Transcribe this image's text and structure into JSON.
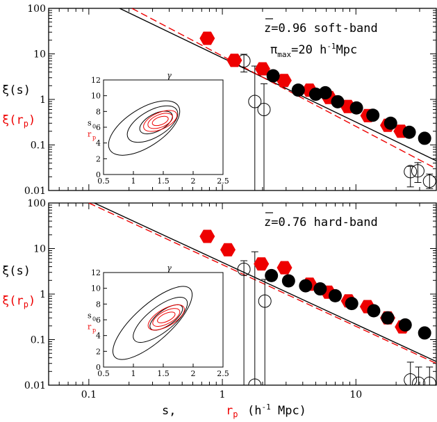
{
  "colors": {
    "red": "#ee0000",
    "black": "#000000"
  },
  "labels": {
    "y_black": "ξ(s)",
    "y_red": "ξ(r",
    "y_red_sub": "p",
    "y_red_close": ")",
    "x_prefix": "s,",
    "x_r": "r",
    "x_r_sub": "p",
    "x_units": "(h",
    "x_units_sup": "-1",
    "x_units_close": " Mpc)",
    "inset_top": "γ",
    "inset_s": "s",
    "inset_s_sub": "0",
    "inset_r": "r",
    "inset_r_sub": "p"
  },
  "chart_data": [
    {
      "type": "scatter",
      "panel": "top",
      "annotation_line1": "z=0.96 soft-band",
      "annotation_line2_a": "π",
      "annotation_line2_sub": "max",
      "annotation_line2_b": "=20 h",
      "annotation_line2_sup": "-1",
      "annotation_line2_c": "Mpc",
      "xlim": [
        0.05,
        40
      ],
      "ylim": [
        0.01,
        100
      ],
      "xscale": "log",
      "yscale": "log",
      "x_ticks": [
        {
          "v": 0.1,
          "l": "0.1"
        },
        {
          "v": 1,
          "l": "1"
        },
        {
          "v": 10,
          "l": "10"
        }
      ],
      "y_ticks": [
        {
          "v": 0.01,
          "l": "0.01"
        },
        {
          "v": 0.1,
          "l": "0.1"
        },
        {
          "v": 1,
          "l": "1"
        },
        {
          "v": 10,
          "l": "10"
        },
        {
          "v": 100,
          "l": "100"
        }
      ],
      "fit_black": [
        [
          0.17,
          100
        ],
        [
          40,
          0.045
        ]
      ],
      "fit_red": [
        [
          0.21,
          100
        ],
        [
          40,
          0.03
        ]
      ],
      "series": [
        {
          "marker": "red-hexagon",
          "points": [
            [
              0.77,
              22
            ],
            [
              1.23,
              7.2
            ],
            [
              2.0,
              4.7
            ],
            [
              2.9,
              2.6
            ],
            [
              4.5,
              1.6
            ],
            [
              6.3,
              1.1
            ],
            [
              8.7,
              0.7
            ],
            [
              12.3,
              0.44
            ],
            [
              17.3,
              0.27
            ],
            [
              21.8,
              0.2
            ]
          ]
        },
        {
          "marker": "black-filled-circle",
          "points": [
            [
              2.4,
              3.3
            ],
            [
              3.7,
              1.6
            ],
            [
              5.0,
              1.3
            ],
            [
              5.9,
              1.4
            ],
            [
              7.3,
              0.89
            ],
            [
              10.1,
              0.65
            ],
            [
              13.4,
              0.45
            ],
            [
              18.2,
              0.3
            ],
            [
              25.1,
              0.19
            ],
            [
              32.7,
              0.14
            ]
          ]
        },
        {
          "marker": "black-open-circle",
          "points": [
            [
              1.45,
              7.0,
              4.0,
              9.8
            ],
            [
              1.75,
              0.9,
              0.01,
              5.4
            ],
            [
              2.05,
              0.6,
              0.01,
              2.2
            ],
            [
              25.6,
              0.026,
              0.012,
              0.034
            ],
            [
              29.1,
              0.027,
              0.015,
              0.041
            ],
            [
              35.6,
              0.016,
              0.011,
              0.023
            ]
          ]
        }
      ],
      "inset": {
        "xlim": [
          0.5,
          2.5
        ],
        "ylim": [
          0,
          12
        ],
        "x_ticks": [
          "0.5",
          "1",
          "1.5",
          "2",
          "2.5"
        ],
        "y_ticks": [
          "0",
          "2",
          "4",
          "6",
          "8",
          "10",
          "12"
        ],
        "contours_black": [
          {
            "cx": 1.38,
            "cy": 6.6,
            "rx": 0.3,
            "ry": 1.1,
            "rot": -28
          },
          {
            "cx": 1.32,
            "cy": 6.4,
            "rx": 0.47,
            "ry": 1.7,
            "rot": -30
          },
          {
            "cx": 1.18,
            "cy": 5.9,
            "rx": 0.68,
            "ry": 2.4,
            "rot": -33
          }
        ],
        "contours_red": [
          {
            "cx": 1.45,
            "cy": 6.8,
            "rx": 0.14,
            "ry": 0.5,
            "rot": -20
          },
          {
            "cx": 1.45,
            "cy": 6.8,
            "rx": 0.22,
            "ry": 0.8,
            "rot": -22
          },
          {
            "cx": 1.45,
            "cy": 6.8,
            "rx": 0.3,
            "ry": 1.05,
            "rot": -24
          }
        ]
      }
    },
    {
      "type": "scatter",
      "panel": "bottom",
      "annotation_line1": "z=0.76 hard-band",
      "xlim": [
        0.05,
        40
      ],
      "ylim": [
        0.01,
        100
      ],
      "xscale": "log",
      "yscale": "log",
      "x_ticks": [
        {
          "v": 0.1,
          "l": "0.1"
        },
        {
          "v": 1,
          "l": "1"
        },
        {
          "v": 10,
          "l": "10"
        }
      ],
      "y_ticks": [
        {
          "v": 0.01,
          "l": "0.01"
        },
        {
          "v": 0.1,
          "l": "0.1"
        },
        {
          "v": 1,
          "l": "1"
        },
        {
          "v": 10,
          "l": "10"
        },
        {
          "v": 100,
          "l": "100"
        }
      ],
      "fit_black": [
        [
          0.11,
          100
        ],
        [
          40,
          0.033
        ]
      ],
      "fit_red": [
        [
          0.1,
          100
        ],
        [
          40,
          0.03
        ]
      ],
      "series": [
        {
          "marker": "red-hexagon",
          "points": [
            [
              0.77,
              18.5
            ],
            [
              1.1,
              9.4
            ],
            [
              1.96,
              4.6
            ],
            [
              2.92,
              3.8
            ],
            [
              4.5,
              1.65
            ],
            [
              6.2,
              1.1
            ],
            [
              8.8,
              0.71
            ],
            [
              12.2,
              0.53
            ],
            [
              17.3,
              0.3
            ],
            [
              22.3,
              0.19
            ]
          ]
        },
        {
          "marker": "black-filled-circle",
          "points": [
            [
              2.33,
              2.55
            ],
            [
              3.13,
              1.95
            ],
            [
              4.2,
              1.52
            ],
            [
              5.4,
              1.3
            ],
            [
              7.0,
              0.92
            ],
            [
              9.3,
              0.62
            ],
            [
              13.6,
              0.43
            ],
            [
              17.3,
              0.3
            ],
            [
              23.4,
              0.21
            ],
            [
              32.7,
              0.14
            ]
          ]
        },
        {
          "marker": "black-open-circle",
          "points": [
            [
              1.45,
              3.5,
              0.01,
              5.4
            ],
            [
              1.75,
              0.01,
              0.01,
              8.5
            ],
            [
              2.08,
              0.7,
              0.01,
              2.1
            ],
            [
              25.6,
              0.013,
              0.01,
              0.032
            ],
            [
              29.5,
              0.011,
              0.01,
              0.025
            ],
            [
              35.6,
              0.011,
              0.01,
              0.025
            ]
          ]
        }
      ],
      "inset": {
        "xlim": [
          0.5,
          2.5
        ],
        "ylim": [
          0,
          12
        ],
        "x_ticks": [
          "0.5",
          "1",
          "1.5",
          "2",
          "2.5"
        ],
        "y_ticks": [
          "0",
          "2",
          "4",
          "6",
          "8",
          "10",
          "12"
        ],
        "contours_black": [
          {
            "cx": 1.55,
            "cy": 6.3,
            "rx": 0.32,
            "ry": 1.0,
            "rot": -35
          },
          {
            "cx": 1.45,
            "cy": 6.0,
            "rx": 0.55,
            "ry": 1.6,
            "rot": -38
          },
          {
            "cx": 1.32,
            "cy": 5.6,
            "rx": 0.85,
            "ry": 2.3,
            "rot": -42
          }
        ],
        "contours_red": [
          {
            "cx": 1.55,
            "cy": 6.3,
            "rx": 0.16,
            "ry": 0.5,
            "rot": -25
          },
          {
            "cx": 1.55,
            "cy": 6.3,
            "rx": 0.25,
            "ry": 0.8,
            "rot": -28
          },
          {
            "cx": 1.55,
            "cy": 6.3,
            "rx": 0.34,
            "ry": 1.1,
            "rot": -30
          }
        ]
      }
    }
  ]
}
